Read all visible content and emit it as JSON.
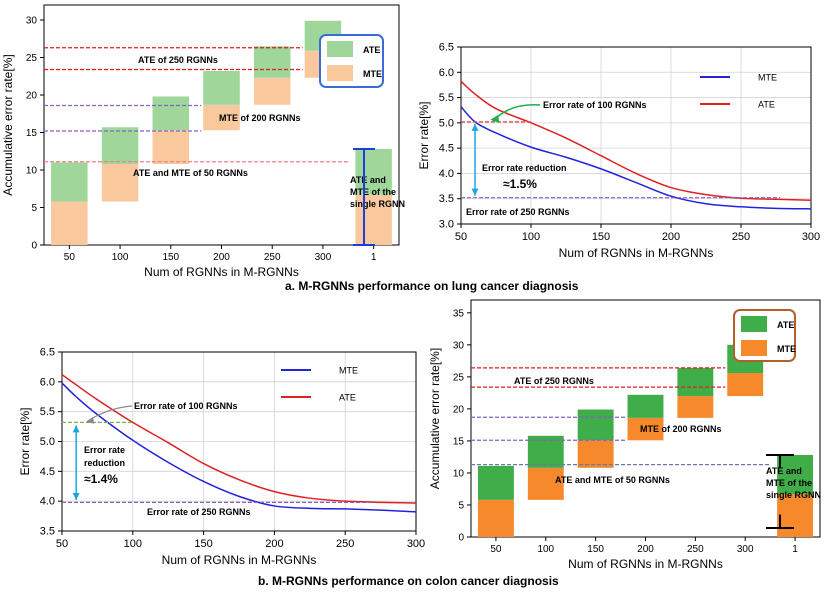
{
  "figure": {
    "caption_a": "a. M-RGNNs performance on lung cancer diagnosis",
    "caption_b": "b. M-RGNNs performance on colon cancer diagnosis"
  },
  "colors": {
    "ate_light": "#9fd79b",
    "mte_light": "#f9c89d",
    "ate_dark": "#3fae49",
    "mte_dark": "#f5892c",
    "line_mte": "#2222dd",
    "line_ate": "#e02020",
    "red_dash": "#e01818",
    "purple_dash": "#8a5ec8",
    "legend_box_a": "#3a6bd6",
    "legend_box_b": "#b45f2a",
    "arrow_cyan": "#1aa7e0",
    "arrow_green": "#1db14f",
    "bracket_a": "#1a3fe0",
    "bracket_b": "#000000"
  },
  "chart_data": [
    {
      "id": "a_bar",
      "type": "bar",
      "subtype": "floating-stacked",
      "ylabel": "Accumulative error rate[%]",
      "xlabel": "Num of RGNNs in M-RGNNs",
      "categories": [
        "50",
        "100",
        "150",
        "200",
        "250",
        "300",
        "1"
      ],
      "ylim": [
        0,
        32
      ],
      "yticks": [
        0,
        5,
        10,
        15,
        20,
        25,
        30
      ],
      "series": [
        {
          "name": "MTE",
          "base": [
            0,
            5.8,
            10.8,
            15.3,
            18.7,
            22.3,
            0
          ],
          "values": [
            5.8,
            5.0,
            4.5,
            3.4,
            3.6,
            3.6,
            6.7
          ]
        },
        {
          "name": "ATE",
          "base": [
            5.8,
            10.8,
            15.3,
            18.7,
            22.3,
            25.9,
            6.7
          ],
          "values": [
            5.2,
            4.9,
            4.5,
            4.5,
            4.2,
            4.0,
            6.1
          ]
        }
      ],
      "legend": [
        "ATE",
        "MTE"
      ],
      "reference_lines": [
        {
          "y": 26.3,
          "color": "red"
        },
        {
          "y": 23.4,
          "color": "red"
        },
        {
          "y": 18.6,
          "color": "purple"
        },
        {
          "y": 15.2,
          "color": "purple"
        },
        {
          "y": 11.1,
          "color": "pink"
        }
      ],
      "annotations": [
        "ATE of 250 RGNNs",
        "MTE of 200 RGNNs",
        "ATE and MTE of 50 RGNNs",
        "ATE and",
        "MTE of the",
        "single RGNN"
      ]
    },
    {
      "id": "a_line",
      "type": "line",
      "ylabel": "Error rate[%]",
      "xlabel": "Num of RGNNs in M-RGNNs",
      "xlim": [
        50,
        300
      ],
      "ylim": [
        3.0,
        6.5
      ],
      "xticks": [
        50,
        100,
        150,
        200,
        250,
        300
      ],
      "yticks": [
        "3.0",
        "3.5",
        "4.0",
        "4.5",
        "5.0",
        "5.5",
        "6.0",
        "6.5"
      ],
      "series": [
        {
          "name": "MTE",
          "x": [
            50,
            60,
            75,
            100,
            125,
            150,
            175,
            200,
            225,
            250,
            275,
            300
          ],
          "values": [
            5.32,
            5.02,
            4.8,
            4.52,
            4.32,
            4.09,
            3.82,
            3.55,
            3.4,
            3.34,
            3.31,
            3.3
          ]
        },
        {
          "name": "ATE",
          "x": [
            50,
            60,
            75,
            100,
            125,
            150,
            175,
            200,
            225,
            250,
            275,
            300
          ],
          "values": [
            5.82,
            5.57,
            5.28,
            5.0,
            4.7,
            4.35,
            4.0,
            3.72,
            3.58,
            3.51,
            3.49,
            3.47
          ]
        }
      ],
      "reference_lines": [
        {
          "y": 5.02,
          "color": "red"
        },
        {
          "y": 3.52,
          "color": "purple"
        }
      ],
      "annotations": [
        "Error rate of 100 RGNNs",
        "Error rate reduction",
        "≈1.5%",
        "Error rate of 250 RGNNs"
      ]
    },
    {
      "id": "b_line",
      "type": "line",
      "ylabel": "Error rate[%]",
      "xlabel": "Num of RGNNs in M-RGNNs",
      "xlim": [
        50,
        300
      ],
      "ylim": [
        3.5,
        6.5
      ],
      "xticks": [
        50,
        100,
        150,
        200,
        250,
        300
      ],
      "yticks": [
        "3.5",
        "4.0",
        "4.5",
        "5.0",
        "5.5",
        "6.0",
        "6.5"
      ],
      "series": [
        {
          "name": "MTE",
          "x": [
            50,
            60,
            75,
            100,
            125,
            150,
            175,
            200,
            225,
            250,
            275,
            300
          ],
          "values": [
            5.98,
            5.75,
            5.45,
            5.02,
            4.65,
            4.33,
            4.08,
            3.92,
            3.88,
            3.87,
            3.85,
            3.82
          ]
        },
        {
          "name": "ATE",
          "x": [
            50,
            60,
            75,
            100,
            125,
            150,
            175,
            200,
            225,
            250,
            275,
            300
          ],
          "values": [
            6.12,
            5.95,
            5.7,
            5.32,
            4.98,
            4.63,
            4.36,
            4.16,
            4.05,
            4.0,
            3.98,
            3.97
          ]
        }
      ],
      "reference_lines": [
        {
          "y": 5.32,
          "color": "green"
        },
        {
          "y": 3.98,
          "color": "purple"
        }
      ],
      "annotations": [
        "Error rate of 100 RGNNs",
        "Error rate",
        "reduction",
        "≈1.4%",
        "Error rate of 250 RGNNs"
      ]
    },
    {
      "id": "b_bar",
      "type": "bar",
      "subtype": "floating-stacked",
      "ylabel": "Accumulative error rate[%]",
      "xlabel": "Num of RGNNs in M-RGNNs",
      "categories": [
        "50",
        "100",
        "150",
        "200",
        "250",
        "300",
        "1"
      ],
      "ylim": [
        0,
        37
      ],
      "yticks": [
        0,
        5,
        10,
        15,
        20,
        25,
        30,
        35
      ],
      "series": [
        {
          "name": "MTE",
          "base": [
            0,
            5.8,
            10.8,
            15.1,
            18.6,
            22.0,
            0
          ],
          "values": [
            5.8,
            5.0,
            4.3,
            3.5,
            3.4,
            3.6,
            6.7
          ]
        },
        {
          "name": "ATE",
          "base": [
            5.8,
            10.8,
            15.1,
            18.6,
            22.0,
            25.6,
            6.7
          ],
          "values": [
            5.3,
            5.0,
            4.8,
            3.6,
            4.4,
            4.4,
            6.1
          ]
        }
      ],
      "legend": [
        "ATE",
        "MTE"
      ],
      "reference_lines": [
        {
          "y": 26.4,
          "color": "red"
        },
        {
          "y": 23.4,
          "color": "red"
        },
        {
          "y": 18.7,
          "color": "purple"
        },
        {
          "y": 15.1,
          "color": "purple"
        },
        {
          "y": 11.3,
          "color": "slate"
        }
      ],
      "annotations": [
        "ATE of 250 RGNNs",
        "MTE of 200 RGNNs",
        "ATE and MTE of 50 RGNNs",
        "ATE and",
        "MTE of the",
        "single RGNN"
      ]
    }
  ]
}
